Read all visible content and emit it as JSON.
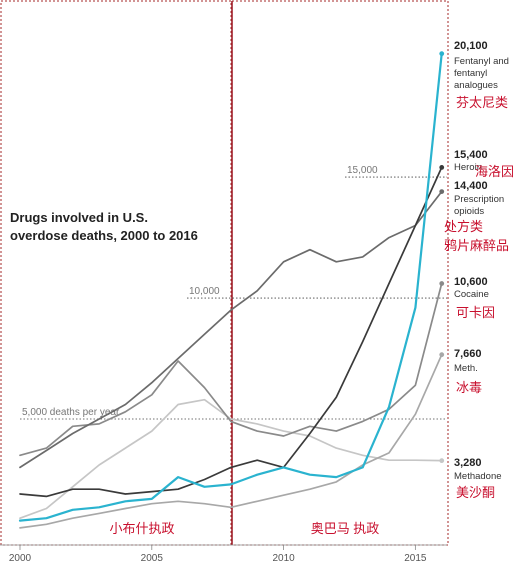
{
  "chart_data": {
    "type": "line",
    "title": "Drugs involved in U.S. overdose deaths, 2000 to 2016",
    "x_ticks": [
      "2000",
      "2005",
      "2010",
      "2015"
    ],
    "x_range": [
      2000,
      2016.2
    ],
    "y_range": [
      0,
      20500
    ],
    "x": [
      2000,
      2001,
      2002,
      2003,
      2004,
      2005,
      2006,
      2007,
      2008,
      2009,
      2010,
      2011,
      2012,
      2013,
      2014,
      2015,
      2016
    ],
    "reference_lines": [
      {
        "value": 5000,
        "label": "5,000 deaths per year"
      },
      {
        "value": 10000,
        "label": "10,000"
      },
      {
        "value": 15000,
        "label": "15,000"
      }
    ],
    "series": [
      {
        "name": "Fentanyl and fentanyl analogues",
        "name_lines": [
          "Fentanyl and",
          "fentanyl",
          "analogues"
        ],
        "label_cn": "芬太尼类",
        "end_value_label": "20,100",
        "color": "#2ab3cf",
        "width": 2.2,
        "values": [
          800,
          900,
          1250,
          1350,
          1600,
          1700,
          2600,
          2200,
          2300,
          2700,
          3000,
          2700,
          2600,
          3000,
          5500,
          9600,
          20100
        ]
      },
      {
        "name": "Heroin",
        "name_lines": [
          "Heroin"
        ],
        "label_cn": "海洛因",
        "end_value_label": "15,400",
        "color": "#3a3a3a",
        "width": 1.7,
        "values": [
          1900,
          1800,
          2100,
          2100,
          1900,
          2000,
          2100,
          2500,
          3000,
          3300,
          3000,
          4400,
          5900,
          8200,
          10600,
          13000,
          15400
        ]
      },
      {
        "name": "Prescription opioids",
        "name_lines": [
          "Prescription",
          "opioids"
        ],
        "label_cn": [
          "处方类",
          "鸦片麻醉品"
        ],
        "end_value_label": "14,400",
        "color": "#6b6b6b",
        "width": 1.7,
        "values": [
          3000,
          3700,
          4400,
          5000,
          5600,
          6500,
          7500,
          8500,
          9500,
          10300,
          11500,
          12000,
          11500,
          11700,
          12500,
          13000,
          14400
        ]
      },
      {
        "name": "Cocaine",
        "name_lines": [
          "Cocaine"
        ],
        "label_cn": "可卡因",
        "end_value_label": "10,600",
        "color": "#8a8a8a",
        "width": 1.7,
        "values": [
          3500,
          3800,
          4700,
          4800,
          5300,
          6000,
          7400,
          6300,
          4900,
          4500,
          4300,
          4700,
          4500,
          4900,
          5400,
          6400,
          10600
        ]
      },
      {
        "name": "Meth.",
        "name_lines": [
          "Meth."
        ],
        "label_cn": "冰毒",
        "end_value_label": "7,660",
        "color": "#a8a8a8",
        "width": 1.7,
        "values": [
          500,
          650,
          900,
          1100,
          1300,
          1500,
          1600,
          1500,
          1350,
          1600,
          1850,
          2100,
          2400,
          3100,
          3600,
          5200,
          7660
        ]
      },
      {
        "name": "Methadone",
        "name_lines": [
          "Methadone"
        ],
        "label_cn": "美沙酮",
        "end_value_label": "3,280",
        "color": "#c6c6c6",
        "width": 1.7,
        "values": [
          900,
          1300,
          2200,
          3100,
          3800,
          4500,
          5600,
          5800,
          5000,
          4800,
          4500,
          4300,
          3800,
          3500,
          3300,
          3300,
          3280
        ]
      }
    ],
    "periods": [
      {
        "label": "小布什执政",
        "from": 2000,
        "to": 2008.3
      },
      {
        "label": "奥巴马 执政",
        "from": 2008.3,
        "to": 2016.2
      }
    ]
  }
}
